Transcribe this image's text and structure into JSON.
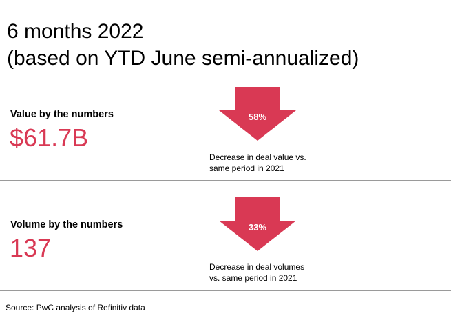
{
  "title": {
    "line1": "6 months 2022",
    "line2": "(based on YTD June semi-annualized)"
  },
  "value_section": {
    "label": "Value by the numbers",
    "number": "$61.7B",
    "change_pct": "58%",
    "change_fraction": 0.58,
    "desc_line1": "Decrease in deal value vs.",
    "desc_line2": "same period in 2021"
  },
  "volume_section": {
    "label": "Volume by the numbers",
    "number": "137",
    "change_pct": "33%",
    "change_fraction": 0.33,
    "desc_line1": "Decrease in deal volumes",
    "desc_line2": "vs. same period in 2021"
  },
  "source": "Source: PwC analysis of Refinitiv data",
  "colors": {
    "accent": "#d93954",
    "arrow": "#d93954",
    "divider": "#9a9a9a",
    "text": "#000000"
  },
  "icons": {
    "arrow": "down-arrow-icon"
  }
}
